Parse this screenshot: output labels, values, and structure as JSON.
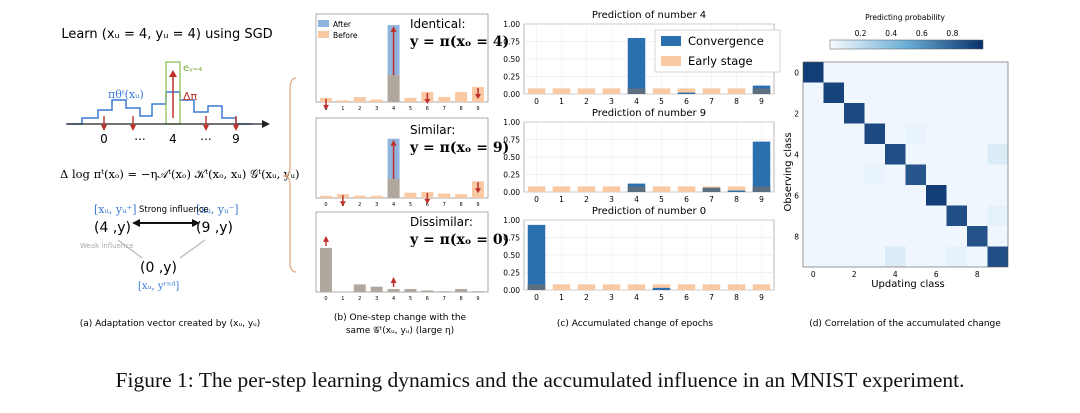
{
  "figure_caption": "Figure 1: The per-step learning dynamics and the accumulated influence in an MNIST experiment.",
  "panel_a": {
    "title": "Learn (xᵤ = 4, yᵤ = 4) using SGD",
    "x_ticks": [
      "0",
      "...",
      "4",
      "...",
      "9"
    ],
    "label_pi": "πθᵗ(xᵤ)",
    "label_e": "eᵧ₌₄",
    "label_delta": "Δπ",
    "equation": "Δ log πᵗ(xₒ) = −η𝒜ᵗ(xₒ) 𝒦ᵗ(xₒ, xᵤ) 𝒢ᵗ(xᵤ, yᵤ)",
    "node_top_left": "[xᵤ, yᵤ⁺]",
    "node_top_left_val": "(4 ,y)",
    "node_top_right": "[xᵤ, yᵤ⁻]",
    "node_top_right_val": "(9 ,y)",
    "node_bottom": "(0 ,y)",
    "node_bottom_label": "[xᵤ, yʳⁿᵈ]",
    "strong": "Strong influence",
    "weak": "Weak influence",
    "caption": "(a) Adaptation vector created by (xᵤ, yᵤ)"
  },
  "panel_b": {
    "legend": [
      "After",
      "Before"
    ],
    "rows": [
      {
        "tag": "Identical:",
        "formula": "y = π(xₒ = 4)"
      },
      {
        "tag": "Similar:",
        "formula": "y = π(xₒ = 9)"
      },
      {
        "tag": "Dissimilar:",
        "formula": "y = π(xₒ = 0)"
      }
    ],
    "caption_1": "(b) One-step change with the",
    "caption_2": "same 𝒢ᵗ(xᵤ, yᵤ) (large η)"
  },
  "panel_c": {
    "legend": [
      "Convergence",
      "Early stage"
    ],
    "caption": "(c) Accumulated change of epochs",
    "colors": {
      "convergence": "#2a6fae",
      "early": "#f9c9a4"
    }
  },
  "panel_d": {
    "colorbar_title": "Predicting probability",
    "colorbar_ticks": [
      "0.2",
      "0.4",
      "0.6",
      "0.8"
    ],
    "ylabel": "Observing class",
    "xlabel": "Updating class",
    "caption": "(d) Correlation of the accumulated change"
  },
  "chart_data": [
    {
      "type": "bar",
      "title": "Prediction of number 4",
      "categories": [
        "0",
        "1",
        "2",
        "3",
        "4",
        "5",
        "6",
        "7",
        "8",
        "9"
      ],
      "ylim": [
        0,
        1.0
      ],
      "yticks": [
        "0.00",
        "0.25",
        "0.50",
        "0.75",
        "1.00"
      ],
      "series": [
        {
          "name": "Convergence",
          "values": [
            0.0,
            0.0,
            0.0,
            0.0,
            0.8,
            0.0,
            0.02,
            0.0,
            0.0,
            0.12
          ]
        },
        {
          "name": "Early stage",
          "values": [
            0.08,
            0.08,
            0.08,
            0.08,
            0.08,
            0.08,
            0.08,
            0.08,
            0.08,
            0.08
          ]
        }
      ]
    },
    {
      "type": "bar",
      "title": "Prediction of number 9",
      "categories": [
        "0",
        "1",
        "2",
        "3",
        "4",
        "5",
        "6",
        "7",
        "8",
        "9"
      ],
      "ylim": [
        0,
        1.0
      ],
      "yticks": [
        "0.00",
        "0.25",
        "0.50",
        "0.75",
        "1.00"
      ],
      "series": [
        {
          "name": "Convergence",
          "values": [
            0.0,
            0.0,
            0.0,
            0.0,
            0.12,
            0.0,
            0.0,
            0.06,
            0.02,
            0.72
          ]
        },
        {
          "name": "Early stage",
          "values": [
            0.08,
            0.08,
            0.08,
            0.08,
            0.08,
            0.08,
            0.08,
            0.08,
            0.08,
            0.08
          ]
        }
      ]
    },
    {
      "type": "bar",
      "title": "Prediction of number 0",
      "categories": [
        "0",
        "1",
        "2",
        "3",
        "4",
        "5",
        "6",
        "7",
        "8",
        "9"
      ],
      "ylim": [
        0,
        1.0
      ],
      "yticks": [
        "0.00",
        "0.25",
        "0.50",
        "0.75",
        "1.00"
      ],
      "series": [
        {
          "name": "Convergence",
          "values": [
            0.93,
            0.0,
            0.0,
            0.0,
            0.0,
            0.03,
            0.0,
            0.0,
            0.0,
            0.0
          ]
        },
        {
          "name": "Early stage",
          "values": [
            0.08,
            0.08,
            0.08,
            0.08,
            0.08,
            0.08,
            0.08,
            0.08,
            0.08,
            0.08
          ]
        }
      ]
    },
    {
      "type": "heatmap",
      "xlabel": "Updating class",
      "ylabel": "Observing class",
      "x_ticks": [
        "0",
        "2",
        "4",
        "6",
        "8"
      ],
      "y_ticks": [
        "0",
        "2",
        "4",
        "6",
        "8"
      ],
      "matrix": [
        [
          0.95,
          0.03,
          0.03,
          0.03,
          0.03,
          0.03,
          0.03,
          0.03,
          0.03,
          0.03
        ],
        [
          0.03,
          0.92,
          0.03,
          0.03,
          0.03,
          0.03,
          0.03,
          0.03,
          0.03,
          0.03
        ],
        [
          0.03,
          0.03,
          0.9,
          0.03,
          0.03,
          0.03,
          0.03,
          0.03,
          0.03,
          0.03
        ],
        [
          0.03,
          0.03,
          0.03,
          0.9,
          0.03,
          0.05,
          0.03,
          0.03,
          0.03,
          0.03
        ],
        [
          0.03,
          0.03,
          0.03,
          0.03,
          0.88,
          0.03,
          0.03,
          0.03,
          0.03,
          0.1
        ],
        [
          0.03,
          0.03,
          0.03,
          0.05,
          0.03,
          0.85,
          0.03,
          0.03,
          0.03,
          0.03
        ],
        [
          0.03,
          0.03,
          0.03,
          0.03,
          0.03,
          0.03,
          0.95,
          0.03,
          0.03,
          0.03
        ],
        [
          0.03,
          0.03,
          0.03,
          0.03,
          0.03,
          0.03,
          0.03,
          0.88,
          0.03,
          0.06
        ],
        [
          0.03,
          0.03,
          0.03,
          0.03,
          0.03,
          0.03,
          0.03,
          0.03,
          0.86,
          0.03
        ],
        [
          0.03,
          0.03,
          0.03,
          0.03,
          0.1,
          0.03,
          0.03,
          0.06,
          0.03,
          0.88
        ]
      ]
    }
  ]
}
